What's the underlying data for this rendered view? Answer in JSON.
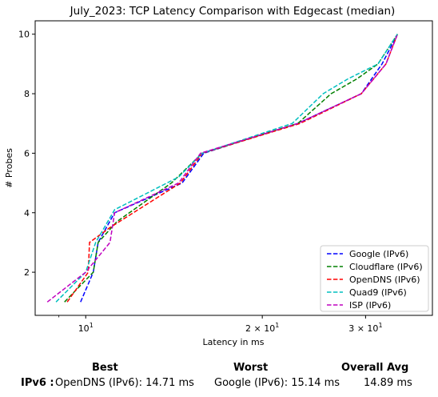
{
  "chart_data": {
    "type": "line",
    "title": "July_2023: TCP Latency Comparison with Edgecast (median)",
    "xlabel": "Latency in ms",
    "ylabel": "# Probes",
    "xscale": "log",
    "xlim": [
      8.2,
      39.0
    ],
    "ylim": [
      0.55,
      10.45
    ],
    "xticks": [
      {
        "value": 10,
        "label": "10¹",
        "base": "10",
        "exp": "1",
        "coef": ""
      },
      {
        "value": 20,
        "label": "2×10¹",
        "base": "10",
        "exp": "1",
        "coef": "2 × "
      },
      {
        "value": 30,
        "label": "3×10¹",
        "base": "10",
        "exp": "1",
        "coef": "3 × "
      }
    ],
    "yticks": [
      2,
      4,
      6,
      8,
      10
    ],
    "legend_position": "lower-right",
    "grid": false,
    "series": [
      {
        "name": "Google (IPv6)",
        "color": "#0000ff",
        "points": [
          [
            9.8,
            1
          ],
          [
            10.3,
            2
          ],
          [
            10.5,
            3
          ],
          [
            11.2,
            4
          ],
          [
            14.6,
            5
          ],
          [
            15.9,
            6
          ],
          [
            23.0,
            7
          ],
          [
            29.5,
            8
          ],
          [
            32.0,
            9
          ],
          [
            34.0,
            10
          ]
        ]
      },
      {
        "name": "Cloudflare (IPv6)",
        "color": "#008000",
        "points": [
          [
            9.2,
            1
          ],
          [
            10.3,
            2
          ],
          [
            10.5,
            3
          ],
          [
            11.3,
            3.7
          ],
          [
            14.0,
            5
          ],
          [
            15.8,
            6
          ],
          [
            23.0,
            7
          ],
          [
            26.2,
            8
          ],
          [
            29.0,
            8.5
          ],
          [
            31.5,
            9
          ],
          [
            34.0,
            10
          ]
        ]
      },
      {
        "name": "OpenDNS (IPv6)",
        "color": "#ff0000",
        "points": [
          [
            9.3,
            1
          ],
          [
            10.1,
            2
          ],
          [
            10.15,
            3
          ],
          [
            11.0,
            3.5
          ],
          [
            14.5,
            5
          ],
          [
            15.8,
            6
          ],
          [
            23.2,
            7
          ],
          [
            29.5,
            8
          ],
          [
            32.5,
            9
          ],
          [
            34.0,
            10
          ]
        ]
      },
      {
        "name": "Quad9 (IPv6)",
        "color": "#00bfbf",
        "points": [
          [
            8.9,
            1
          ],
          [
            10.0,
            2
          ],
          [
            10.4,
            3
          ],
          [
            11.2,
            4.1
          ],
          [
            14.4,
            5.2
          ],
          [
            15.8,
            6
          ],
          [
            22.5,
            7
          ],
          [
            25.4,
            8
          ],
          [
            28.0,
            8.5
          ],
          [
            31.5,
            9
          ],
          [
            34.0,
            10
          ]
        ]
      },
      {
        "name": "ISP (IPv6)",
        "color": "#bf00bf",
        "points": [
          [
            8.6,
            1
          ],
          [
            10.0,
            2
          ],
          [
            11.0,
            3
          ],
          [
            11.2,
            4
          ],
          [
            14.4,
            5
          ],
          [
            15.7,
            6
          ],
          [
            23.0,
            7
          ],
          [
            29.5,
            8
          ],
          [
            32.5,
            9
          ],
          [
            34.0,
            10
          ]
        ]
      }
    ]
  },
  "summary": {
    "headers": {
      "best": "Best",
      "worst": "Worst",
      "overall": "Overall Avg"
    },
    "row_label": "IPv6 :",
    "best": "OpenDNS (IPv6): 14.71 ms",
    "worst": "Google (IPv6): 15.14 ms",
    "overall": "14.89 ms"
  }
}
